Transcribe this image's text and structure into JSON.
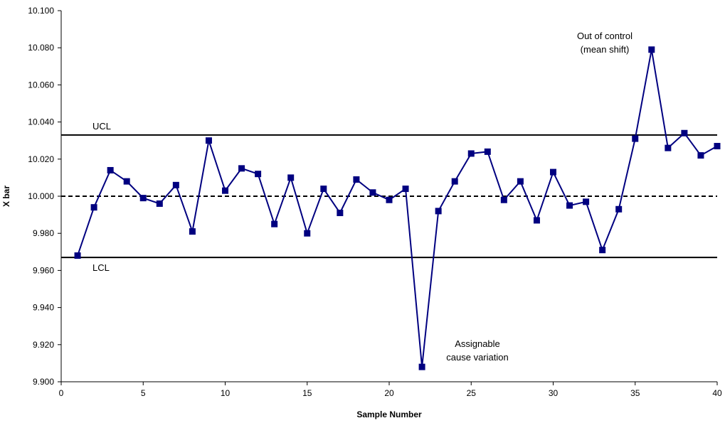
{
  "chart_data": {
    "type": "line",
    "title": "",
    "xlabel": "Sample Number",
    "ylabel": "X bar",
    "xlim": [
      0,
      40
    ],
    "ylim": [
      9.9,
      10.1
    ],
    "x_ticks": [
      "0",
      "5",
      "10",
      "15",
      "20",
      "25",
      "30",
      "35",
      "40"
    ],
    "y_ticks": [
      "9.900",
      "9.920",
      "9.940",
      "9.960",
      "9.980",
      "10.000",
      "10.020",
      "10.040",
      "10.060",
      "10.080",
      "10.100"
    ],
    "grid": false,
    "legend": "none",
    "series": [
      {
        "color": "#000080",
        "marker": "square",
        "x": [
          1,
          2,
          3,
          4,
          5,
          6,
          7,
          8,
          9,
          10,
          11,
          12,
          13,
          14,
          15,
          16,
          17,
          18,
          19,
          20,
          21,
          22,
          23,
          24,
          25,
          26,
          27,
          28,
          29,
          30,
          31,
          32,
          33,
          34,
          35,
          36,
          37,
          38,
          39,
          40
        ],
        "values": [
          9.968,
          9.994,
          10.014,
          10.008,
          9.999,
          9.996,
          10.006,
          9.981,
          10.03,
          10.003,
          10.015,
          10.012,
          9.985,
          10.01,
          9.98,
          10.004,
          9.991,
          10.009,
          10.002,
          9.998,
          10.004,
          9.908,
          9.992,
          10.008,
          10.023,
          10.024,
          9.998,
          10.008,
          9.987,
          10.013,
          9.995,
          9.997,
          9.971,
          9.993,
          10.031,
          10.079,
          10.026,
          10.034,
          10.022,
          10.027
        ]
      }
    ],
    "control_lines": [
      {
        "label": "UCL",
        "value": 10.033,
        "style": "solid"
      },
      {
        "label": "",
        "value": 10.0,
        "style": "dashed"
      },
      {
        "label": "LCL",
        "value": 9.967,
        "style": "solid"
      }
    ],
    "annotations": [
      {
        "lines": [
          "Out of control",
          "(mean shift)"
        ]
      },
      {
        "lines": [
          "Assignable",
          "cause variation"
        ]
      }
    ]
  }
}
